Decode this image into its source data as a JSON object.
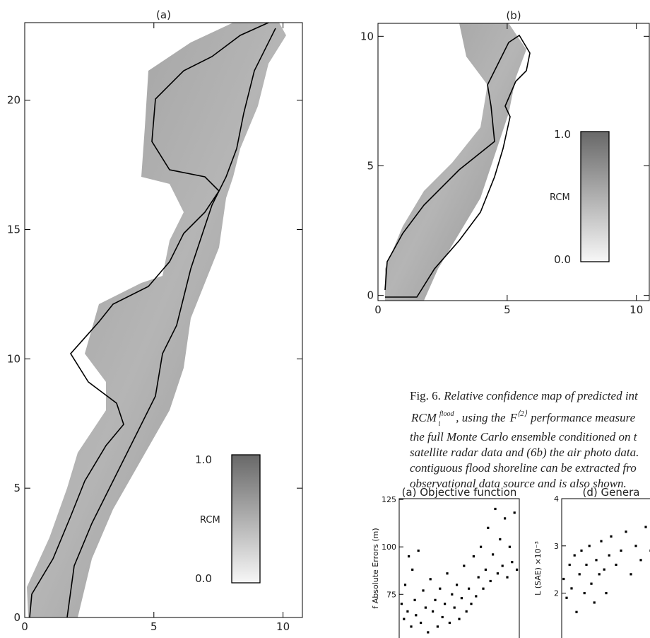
{
  "panel_a": {
    "title": "(a)",
    "xlim": [
      0,
      10.75
    ],
    "ylim": [
      0,
      23
    ],
    "xticks": [
      0,
      5,
      10
    ],
    "yticks": [
      0,
      5,
      10,
      15,
      20
    ],
    "colorbar": {
      "top": "1.0",
      "label": "RCM",
      "bottom": "0.0"
    }
  },
  "panel_b": {
    "title": "(b)",
    "xlim": [
      0,
      10.5
    ],
    "ylim": [
      -0.2,
      10.5
    ],
    "xticks": [
      0,
      5,
      10
    ],
    "yticks": [
      0,
      5,
      10
    ],
    "colorbar": {
      "top": "1.0",
      "label": "RCM",
      "bottom": "0.0"
    }
  },
  "caption": {
    "fig": "Fig. 6.",
    "line1": "Relative confidence map of predicted int",
    "line2": {
      "rcm": "RCM",
      "sub": "i",
      "sup": "flood",
      "mid": ", using the",
      "f": "F",
      "fsup": "⟨2⟩",
      "end": "performance measure"
    },
    "line3": "the full Monte Carlo ensemble conditioned on t",
    "line4": "satellite radar data and (6b) the air photo data.",
    "line5": "contiguous flood shoreline can be extracted fro",
    "line6": "observational data source and is also shown."
  },
  "plot_a": {
    "title": "(a) Objective function",
    "ylabel": "f Absolute Errors (m)",
    "xlim": [
      0,
      1
    ],
    "ylim": [
      52,
      125.4
    ],
    "yticks": [
      75,
      100,
      125
    ],
    "x": [
      0.02,
      0.04,
      0.05,
      0.07,
      0.08,
      0.1,
      0.11,
      0.13,
      0.14,
      0.16,
      0.18,
      0.2,
      0.22,
      0.24,
      0.26,
      0.28,
      0.3,
      0.32,
      0.34,
      0.36,
      0.38,
      0.4,
      0.42,
      0.44,
      0.46,
      0.48,
      0.5,
      0.52,
      0.54,
      0.56,
      0.58,
      0.6,
      0.62,
      0.64,
      0.66,
      0.68,
      0.7,
      0.72,
      0.74,
      0.76,
      0.78,
      0.8,
      0.82,
      0.84,
      0.86,
      0.88,
      0.9,
      0.92,
      0.94,
      0.96,
      0.98
    ],
    "y": [
      70,
      62,
      80,
      66,
      95,
      58,
      88,
      72,
      64,
      98,
      60,
      77,
      68,
      55,
      83,
      66,
      72,
      58,
      78,
      63,
      70,
      86,
      60,
      75,
      68,
      80,
      62,
      73,
      90,
      66,
      78,
      70,
      95,
      74,
      84,
      100,
      78,
      88,
      110,
      82,
      96,
      120,
      86,
      104,
      90,
      115,
      84,
      100,
      92,
      118,
      88
    ]
  },
  "plot_d": {
    "title": "(d) Genera",
    "ylabel": "L (SAE) ×10⁻³",
    "xlim": [
      0,
      1
    ],
    "ylim": [
      1.05,
      4
    ],
    "yticks": [
      2,
      3,
      4
    ],
    "x": [
      0.02,
      0.05,
      0.08,
      0.1,
      0.13,
      0.15,
      0.18,
      0.2,
      0.23,
      0.25,
      0.28,
      0.3,
      0.33,
      0.35,
      0.38,
      0.4,
      0.43,
      0.45,
      0.48,
      0.5,
      0.55,
      0.6,
      0.65,
      0.7,
      0.75,
      0.8,
      0.85,
      0.9,
      0.95
    ],
    "y": [
      2.3,
      1.9,
      2.6,
      2.1,
      2.8,
      1.6,
      2.4,
      2.9,
      2.0,
      2.6,
      3.0,
      2.2,
      1.8,
      2.7,
      2.4,
      3.1,
      2.5,
      2.0,
      2.8,
      3.2,
      2.6,
      2.9,
      3.3,
      2.4,
      3.0,
      2.7,
      3.4,
      2.9,
      3.1
    ]
  }
}
